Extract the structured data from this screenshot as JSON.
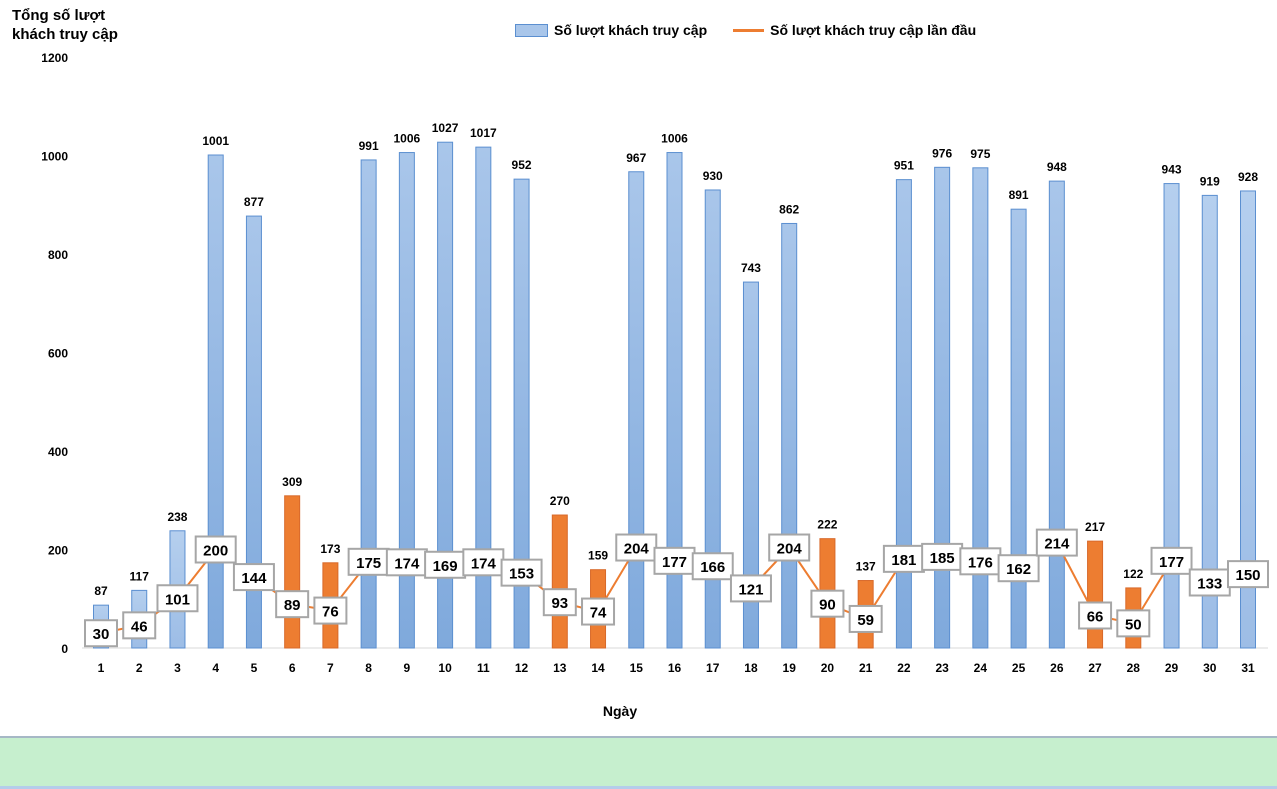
{
  "chart_data": {
    "type": "bar",
    "title": "",
    "ylabel": "Tổng số lượt khách truy cập",
    "xlabel": "Ngày",
    "ylim": [
      0,
      1200
    ],
    "yticks": [
      0,
      200,
      400,
      600,
      800,
      1000,
      1200
    ],
    "grid": false,
    "legend_position": "top-center",
    "categories": [
      "1",
      "2",
      "3",
      "4",
      "5",
      "6",
      "7",
      "8",
      "9",
      "10",
      "11",
      "12",
      "13",
      "14",
      "15",
      "16",
      "17",
      "18",
      "19",
      "20",
      "21",
      "22",
      "23",
      "24",
      "25",
      "26",
      "27",
      "28",
      "29",
      "30",
      "31"
    ],
    "series": [
      {
        "name": "Số lượt khách truy cập",
        "type": "bar",
        "color": "#5b9bd5",
        "values": [
          87,
          117,
          238,
          1001,
          877,
          309,
          173,
          991,
          1006,
          1027,
          1017,
          952,
          270,
          159,
          967,
          1006,
          930,
          743,
          862,
          222,
          137,
          951,
          976,
          975,
          891,
          948,
          217,
          122,
          943,
          919,
          928
        ]
      },
      {
        "name": "Số lượt khách truy cập lần đầu",
        "type": "line",
        "color": "#ed7d31",
        "values": [
          30,
          46,
          101,
          200,
          144,
          89,
          76,
          175,
          174,
          169,
          174,
          153,
          93,
          74,
          204,
          177,
          166,
          121,
          204,
          90,
          59,
          181,
          185,
          176,
          162,
          214,
          66,
          50,
          177,
          133,
          150
        ]
      }
    ],
    "highlighted_bar_days": [
      "6",
      "7",
      "13",
      "14",
      "20",
      "21",
      "27",
      "28"
    ],
    "highlight_color": "#ed7d31",
    "light_bar_days": [
      "1",
      "2",
      "3",
      "29",
      "30",
      "31"
    ],
    "light_bar_color": "#aecaeb"
  },
  "labels": {
    "y_axis_title_line1": "Tổng số lượt",
    "y_axis_title_line2": "khách truy cập",
    "x_axis_title": "Ngày",
    "legend_bar": "Số lượt khách truy cập",
    "legend_line": "Số lượt khách truy cập lần đầu"
  }
}
